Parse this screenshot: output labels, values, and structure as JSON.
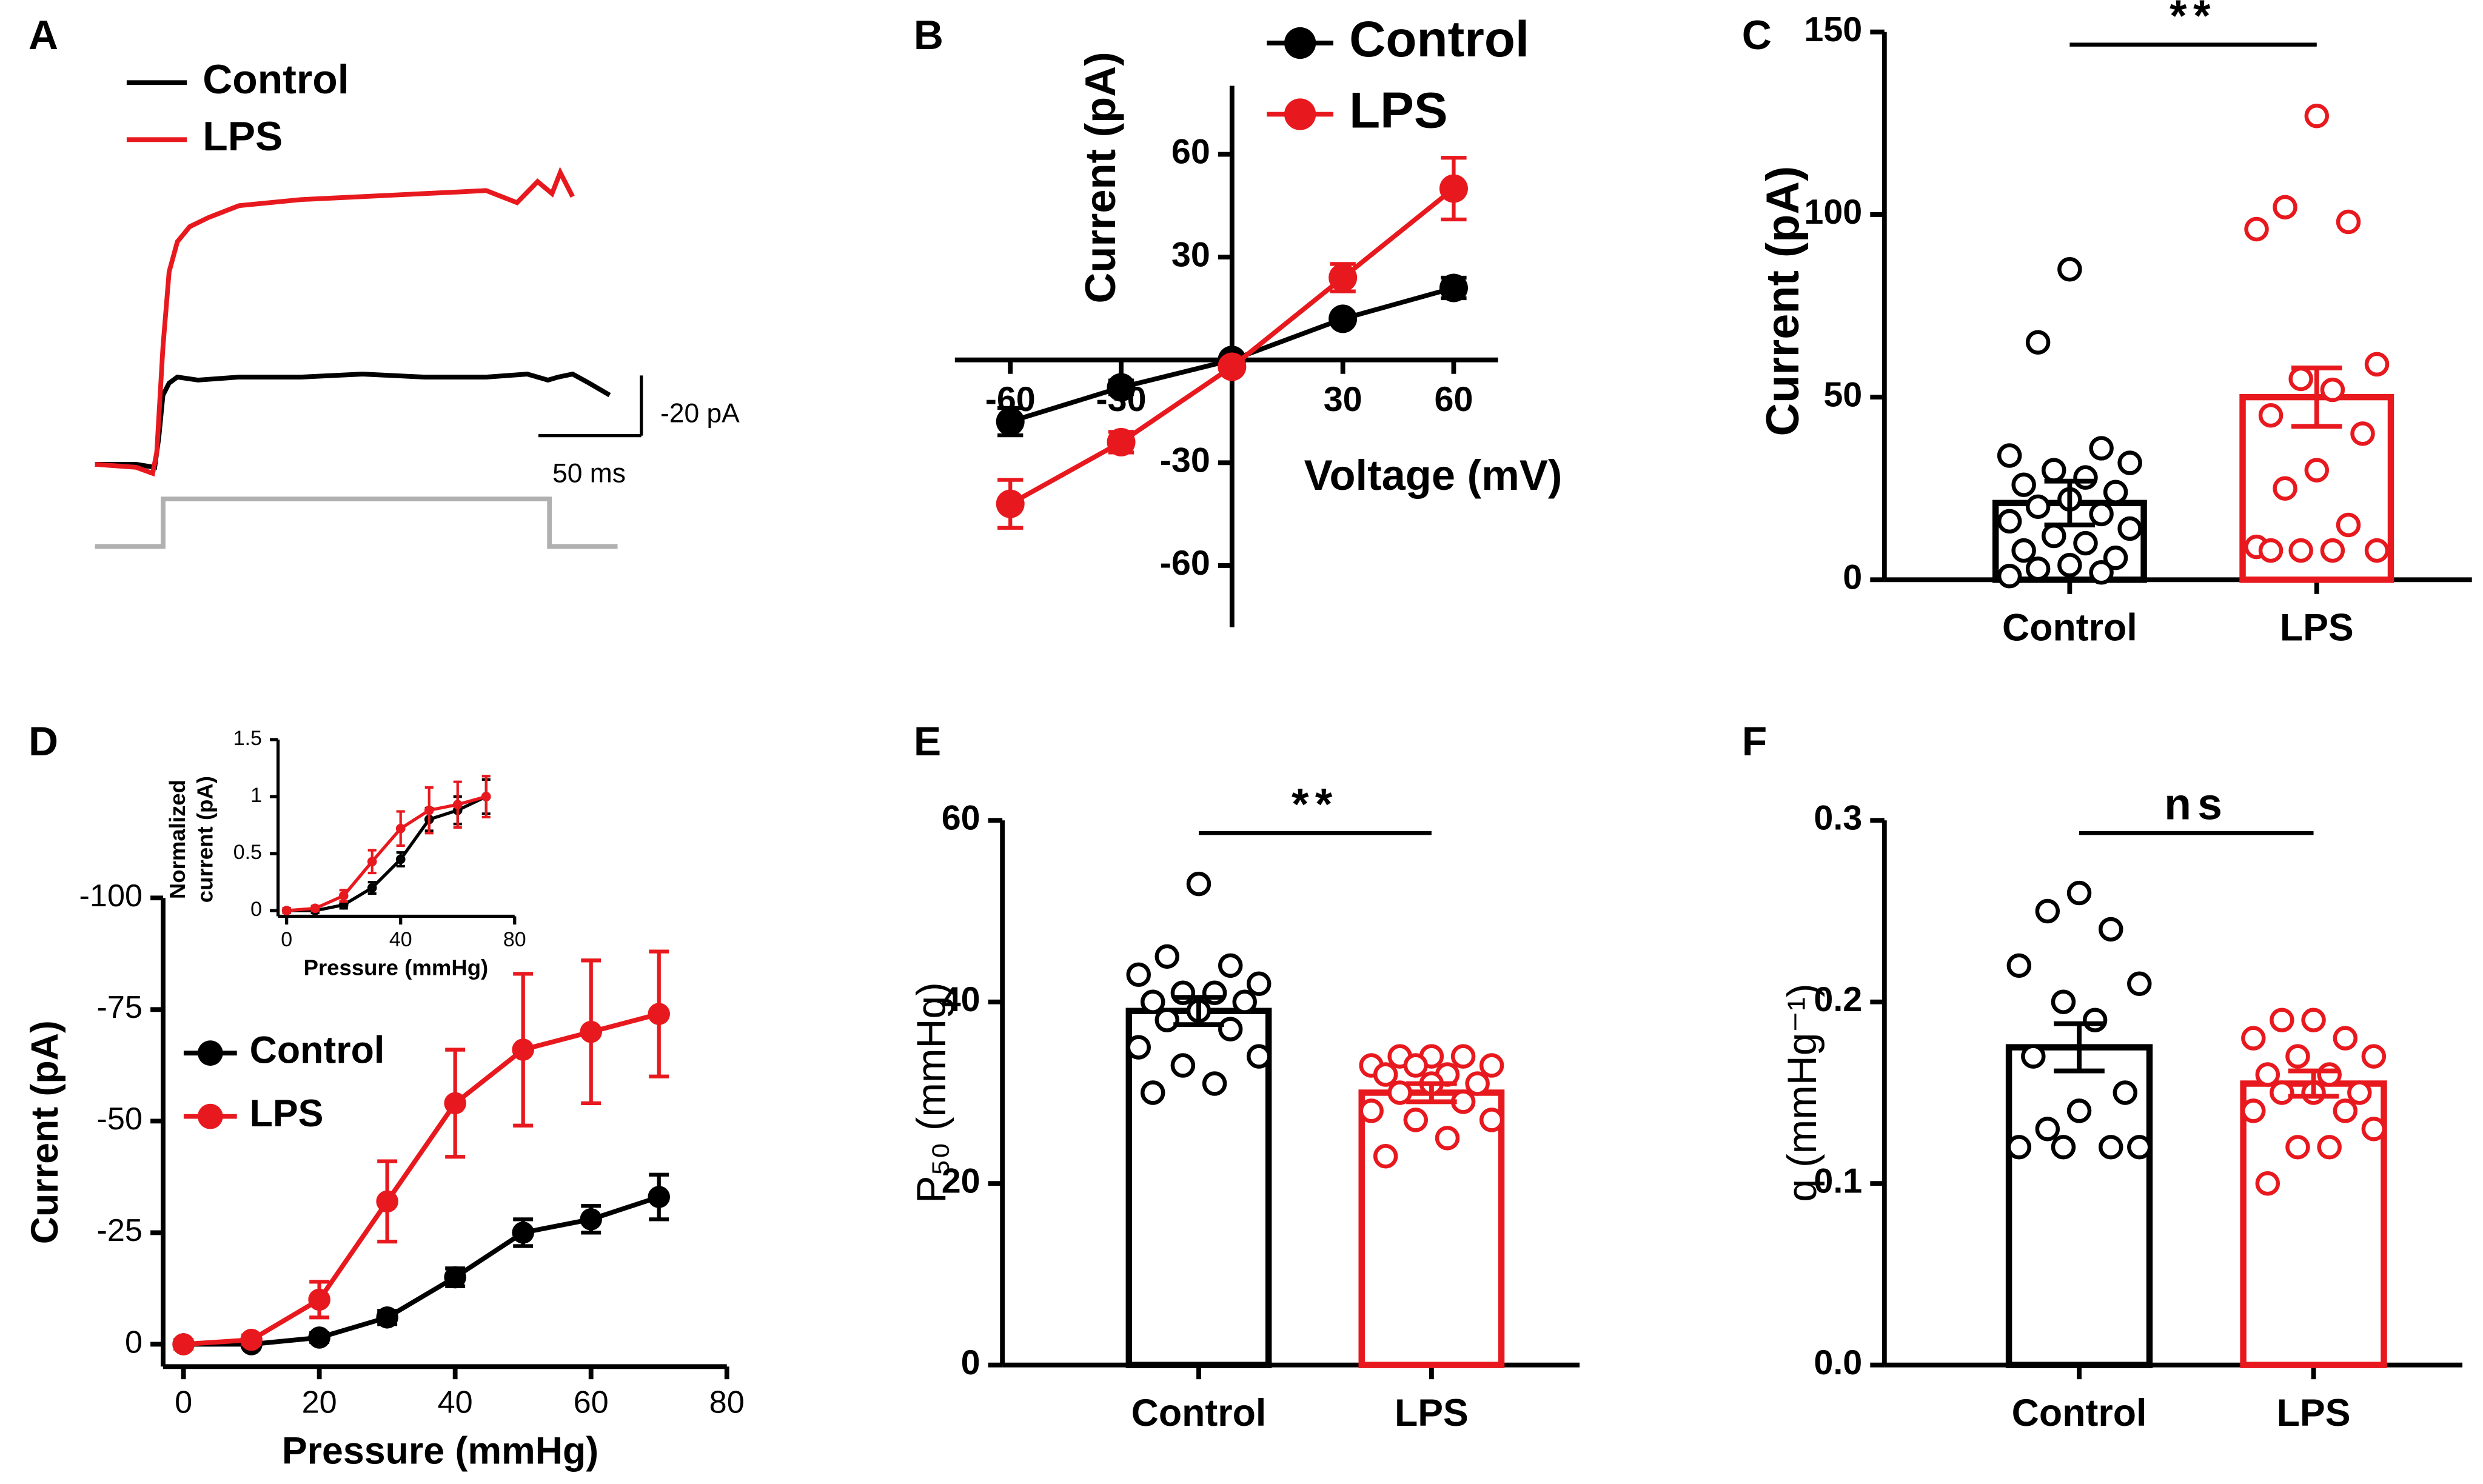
{
  "chart_data": [
    {
      "panel": "A",
      "type": "trace",
      "series": [
        {
          "name": "Control",
          "color": "#000000",
          "x": [
            0,
            20,
            29,
            31,
            33,
            36,
            40,
            50,
            70,
            100,
            130,
            160,
            190,
            210,
            220,
            225,
            232,
            240,
            250
          ],
          "values": [
            -1,
            -1,
            0,
            -10,
            -24,
            -28,
            -30,
            -29,
            -30,
            -30,
            -31,
            -30,
            -30,
            -31,
            -29,
            -30,
            -31,
            -28,
            -24
          ]
        },
        {
          "name": "LPS",
          "color": "#e8191e",
          "x": [
            0,
            20,
            28,
            30,
            33,
            36,
            40,
            46,
            55,
            70,
            100,
            130,
            160,
            190,
            205,
            215,
            222,
            226,
            232
          ],
          "values": [
            -1,
            0,
            2,
            -5,
            -40,
            -65,
            -75,
            -80,
            -83,
            -87,
            -89,
            -90,
            -91,
            -92,
            -88,
            -95,
            -91,
            -98,
            -90
          ]
        }
      ],
      "scale_bar": {
        "x_value": 50,
        "x_label": "50 ms",
        "y_value": -20,
        "y_label": "-20 pA"
      }
    },
    {
      "panel": "B",
      "type": "line",
      "xlabel": "Voltage (mV)",
      "ylabel": "Current (pA)",
      "axes_through_origin": true,
      "xlim": [
        -75,
        72
      ],
      "ylim": [
        -78,
        80
      ],
      "xticks": [
        -60,
        -30,
        30,
        60
      ],
      "yticks": [
        -60,
        -30,
        30,
        60
      ],
      "series": [
        {
          "name": "Control",
          "color": "#000000",
          "x": [
            -60,
            -30,
            0,
            30,
            60
          ],
          "values": [
            -18,
            -8,
            0,
            12,
            21
          ],
          "errors": [
            4,
            2,
            1,
            1,
            3
          ]
        },
        {
          "name": "LPS",
          "color": "#e8191e",
          "x": [
            -60,
            -30,
            0,
            30,
            60
          ],
          "values": [
            -42,
            -24,
            -2,
            24,
            50
          ],
          "errors": [
            7,
            3,
            1,
            4,
            9
          ]
        }
      ]
    },
    {
      "panel": "C",
      "type": "bar",
      "ylabel": "Current (pA)",
      "categories": [
        "Control",
        "LPS"
      ],
      "colors": [
        "#000000",
        "#e8191e"
      ],
      "values": [
        21,
        50
      ],
      "errors": [
        6,
        8
      ],
      "points": [
        [
          85,
          65,
          36,
          34,
          32,
          30,
          28,
          26,
          24,
          22,
          20,
          18,
          16,
          14,
          12,
          10,
          8,
          6,
          4,
          3,
          2,
          1
        ],
        [
          127,
          102,
          98,
          96,
          59,
          55,
          52,
          45,
          40,
          30,
          25,
          15,
          9,
          8,
          8,
          8,
          8
        ]
      ],
      "ylim": [
        0,
        150
      ],
      "yticks": [
        0,
        50,
        100,
        150
      ],
      "significance": "**"
    },
    {
      "panel": "D",
      "type": "line",
      "xlabel": "Pressure (mmHg)",
      "ylabel": "Current (pA)",
      "xlim": [
        -3,
        80
      ],
      "ylim": [
        5,
        -100
      ],
      "xticks": [
        0,
        20,
        40,
        60,
        80
      ],
      "yticks": [
        -100,
        -75,
        -50,
        -25,
        0
      ],
      "series": [
        {
          "name": "Control",
          "color": "#000000",
          "x": [
            0,
            10,
            20,
            30,
            40,
            50,
            60,
            70
          ],
          "values": [
            0,
            0,
            -1.5,
            -6,
            -15,
            -25,
            -28,
            -33
          ],
          "errors": [
            0.5,
            0.5,
            1,
            1.5,
            2,
            3,
            3,
            5
          ]
        },
        {
          "name": "LPS",
          "color": "#e8191e",
          "x": [
            0,
            10,
            20,
            30,
            40,
            50,
            60,
            70
          ],
          "values": [
            0,
            -1,
            -10,
            -32,
            -54,
            -66,
            -70,
            -74
          ],
          "errors": [
            1,
            1,
            4,
            9,
            12,
            17,
            16,
            14
          ]
        }
      ],
      "inset": {
        "type": "line",
        "xlabel": "Pressure (mmHg)",
        "ylabel": [
          "Normalized",
          "current (pA)"
        ],
        "xlim": [
          -3,
          80
        ],
        "ylim": [
          -0.05,
          1.5
        ],
        "xticks": [
          0,
          40,
          80
        ],
        "yticks": [
          0,
          0.5,
          1,
          1.5
        ],
        "series": [
          {
            "color": "#000000",
            "x": [
              0,
              10,
              20,
              30,
              40,
              50,
              60,
              70
            ],
            "values": [
              0,
              0,
              0.05,
              0.2,
              0.45,
              0.8,
              0.88,
              1
            ],
            "errors": [
              0.02,
              0.02,
              0.03,
              0.05,
              0.06,
              0.1,
              0.12,
              0.15
            ]
          },
          {
            "color": "#e8191e",
            "x": [
              0,
              10,
              20,
              30,
              40,
              50,
              60,
              70
            ],
            "values": [
              0,
              0.02,
              0.13,
              0.43,
              0.72,
              0.88,
              0.93,
              1
            ],
            "errors": [
              0.02,
              0.02,
              0.05,
              0.1,
              0.15,
              0.2,
              0.2,
              0.18
            ]
          }
        ]
      }
    },
    {
      "panel": "E",
      "type": "bar",
      "ylabel": "P₅₀ (mmHg)",
      "categories": [
        "Control",
        "LPS"
      ],
      "colors": [
        "#000000",
        "#e8191e"
      ],
      "values": [
        39,
        30
      ],
      "errors": [
        1.5,
        1
      ],
      "points": [
        [
          53,
          45,
          44,
          43,
          42,
          41,
          41,
          40,
          40,
          39,
          38,
          37,
          35,
          34,
          33,
          31,
          30
        ],
        [
          34,
          34,
          34,
          33,
          33,
          33,
          32,
          32,
          31,
          31,
          30,
          29,
          28,
          27,
          27,
          25,
          23
        ]
      ],
      "ylim": [
        0,
        60
      ],
      "yticks": [
        0,
        20,
        40,
        60
      ],
      "significance": "**"
    },
    {
      "panel": "F",
      "type": "bar",
      "ylabel": "q (mmHg⁻¹)",
      "categories": [
        "Control",
        "LPS"
      ],
      "colors": [
        "#000000",
        "#e8191e"
      ],
      "values": [
        0.175,
        0.155
      ],
      "errors": [
        0.013,
        0.007
      ],
      "points": [
        [
          0.26,
          0.25,
          0.24,
          0.22,
          0.21,
          0.2,
          0.19,
          0.17,
          0.15,
          0.14,
          0.13,
          0.12,
          0.12,
          0.12,
          0.12
        ],
        [
          0.19,
          0.19,
          0.18,
          0.18,
          0.17,
          0.17,
          0.16,
          0.16,
          0.15,
          0.15,
          0.15,
          0.14,
          0.14,
          0.13,
          0.12,
          0.12,
          0.1
        ]
      ],
      "ylim": [
        0,
        0.3
      ],
      "yticks": [
        {
          "value": 0,
          "label": "0.0"
        },
        0.1,
        0.2,
        0.3
      ],
      "significance": "ns"
    }
  ]
}
